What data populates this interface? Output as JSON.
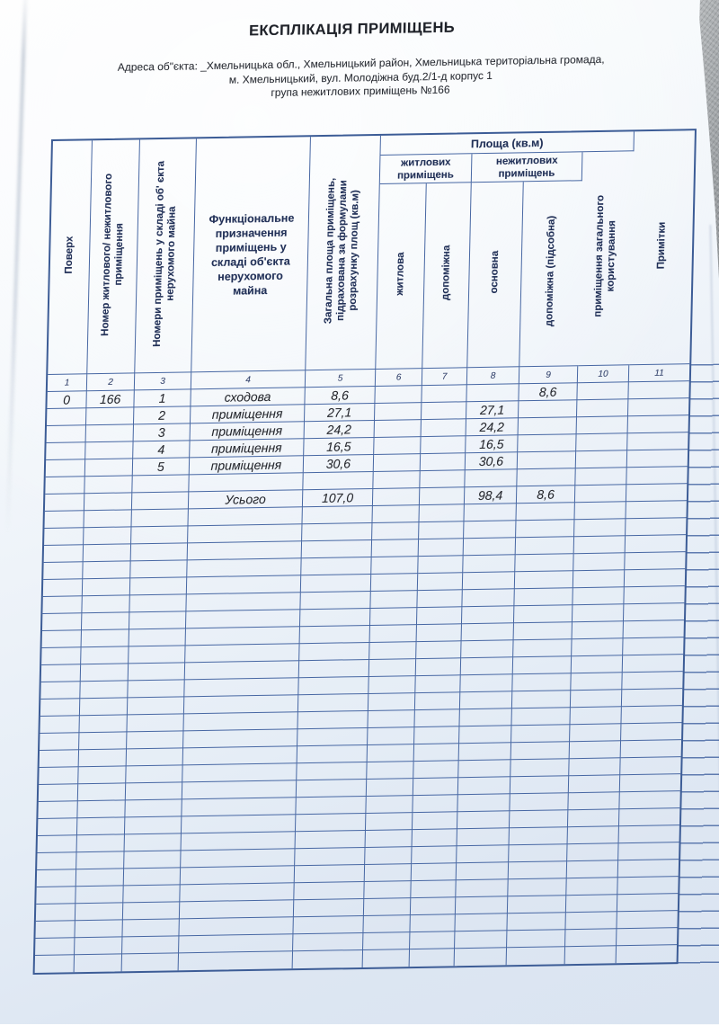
{
  "page": {
    "title": "ЕКСПЛІКАЦІЯ ПРИМІЩЕНЬ"
  },
  "address": {
    "line1": "Адреса об\"єкта: _Хмельницька обл., Хмельницький район, Хмельницька територіальна громада,",
    "line2": "м. Хмельницький, вул. Молодіжна буд.2/1-д корпус 1",
    "line3": "група нежитлових приміщень №166"
  },
  "table": {
    "headers": {
      "col1": "Поверх",
      "col2": "Номер житлового/ нежитлового\nприміщення",
      "col3": "Номери приміщень у складі об' єкта\nнерухомого майна",
      "col4": "Функціональне\nпризначення\nприміщень у\nскладі об'єкта\nнерухомого\nмайна",
      "col5": "Загальна площа приміщень,\nпідрахована за формулами\nрозрахунку площ (кв.м)",
      "area_group": "Площа  (кв.м)",
      "residential_group": "житлових\nприміщень",
      "nonresidential_group": "нежитлових\nприміщень",
      "col6": "житлова",
      "col7": "допоміжна",
      "col8": "основна",
      "col9": "допоміжна (підсобна)",
      "col10": "приміщення загального\nкористування",
      "col11": "Примітки"
    },
    "column_numbers": [
      "1",
      "2",
      "3",
      "4",
      "5",
      "6",
      "7",
      "8",
      "9",
      "10",
      "11"
    ],
    "rows": [
      [
        "0",
        "166",
        "1",
        "сходова",
        "8,6",
        "",
        "",
        "",
        "8,6",
        "",
        ""
      ],
      [
        "",
        "",
        "2",
        "приміщення",
        "27,1",
        "",
        "",
        "27,1",
        "",
        "",
        ""
      ],
      [
        "",
        "",
        "3",
        "приміщення",
        "24,2",
        "",
        "",
        "24,2",
        "",
        "",
        ""
      ],
      [
        "",
        "",
        "4",
        "приміщення",
        "16,5",
        "",
        "",
        "16,5",
        "",
        "",
        ""
      ],
      [
        "",
        "",
        "5",
        "приміщення",
        "30,6",
        "",
        "",
        "30,6",
        "",
        "",
        ""
      ],
      [
        "",
        "",
        "",
        "",
        "",
        "",
        "",
        "",
        "",
        "",
        ""
      ],
      [
        "",
        "",
        "",
        "Усього",
        "107,0",
        "",
        "",
        "98,4",
        "8,6",
        "",
        ""
      ]
    ],
    "empty_row_count": 27,
    "totals": {
      "label": "Усього",
      "total_area": "107,0",
      "main_area": "98,4",
      "auxiliary_area": "8,6"
    }
  },
  "colors": {
    "grid_line": "#4767a3",
    "outer_border": "#3c5c96",
    "header_text": "#223158",
    "body_text": "#26282e",
    "paper_tint": "#e5edf6"
  }
}
